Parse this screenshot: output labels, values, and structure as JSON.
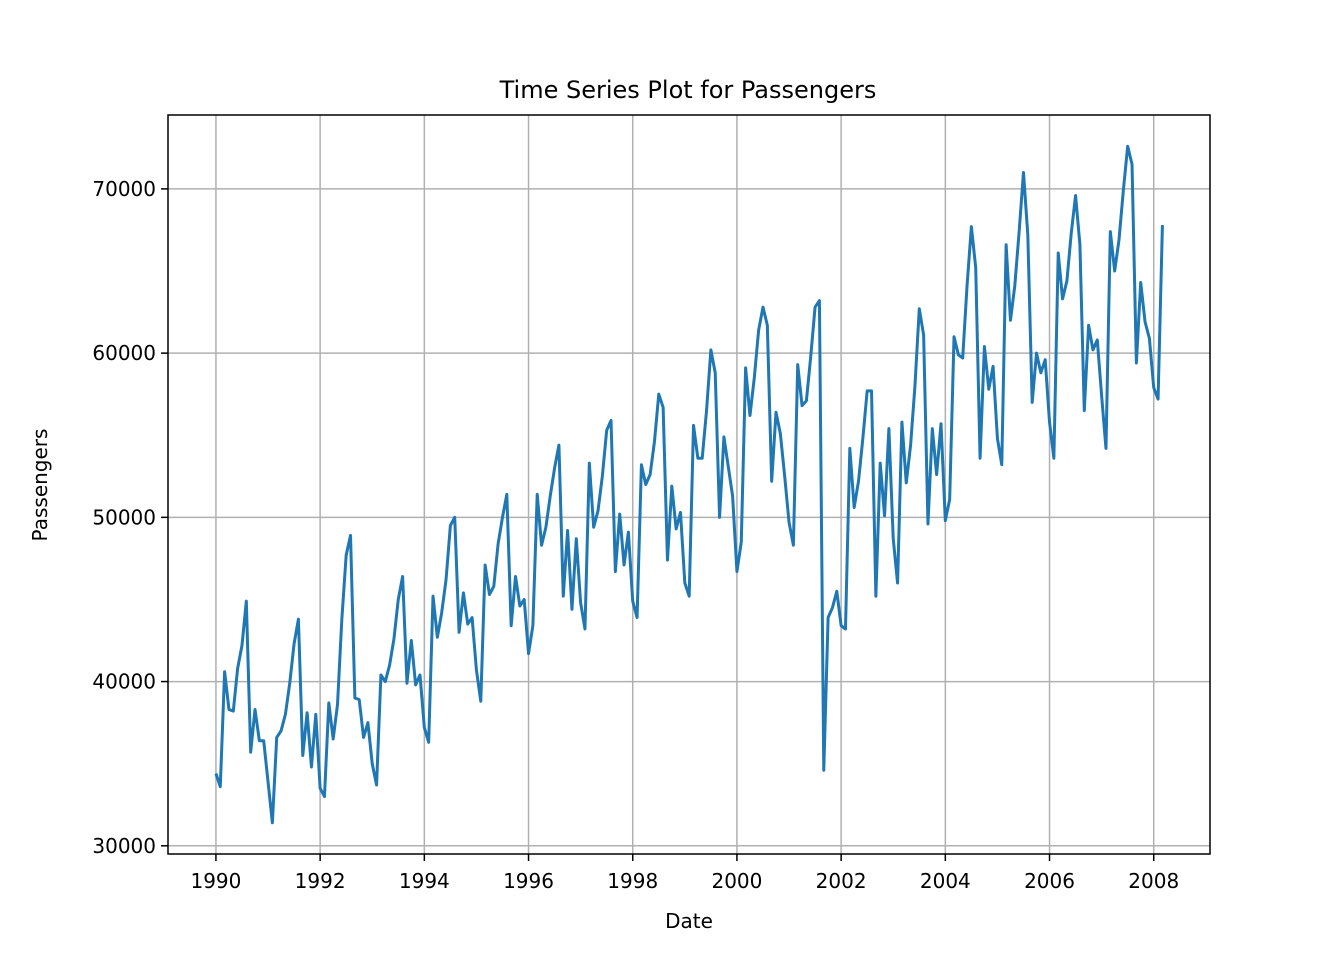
{
  "chart_data": {
    "type": "line",
    "title": "Time Series Plot for Passengers",
    "xlabel": "Date",
    "ylabel": "Passengers",
    "xlim": [
      1989.08,
      2009.08
    ],
    "ylim": [
      29500,
      74500
    ],
    "x_ticks": [
      1990,
      1992,
      1994,
      1996,
      1998,
      2000,
      2002,
      2004,
      2006,
      2008
    ],
    "x_tick_labels": [
      "1990",
      "1992",
      "1994",
      "1996",
      "1998",
      "2000",
      "2002",
      "2004",
      "2006",
      "2008"
    ],
    "y_ticks": [
      30000,
      40000,
      50000,
      60000,
      70000
    ],
    "y_tick_labels": [
      "30000",
      "40000",
      "50000",
      "60000",
      "70000"
    ],
    "grid": true,
    "line_color": "#1f77b4",
    "series": [
      {
        "x_start": "1990-01",
        "x_frequency": "monthly",
        "values": [
          34400,
          33600,
          40600,
          38300,
          38200,
          40800,
          42200,
          44900,
          35700,
          38300,
          36400,
          36400,
          33900,
          31400,
          36600,
          37000,
          38000,
          39900,
          42300,
          43800,
          35500,
          38100,
          34800,
          38000,
          33500,
          33000,
          38700,
          36500,
          38600,
          43800,
          47700,
          48900,
          39000,
          38900,
          36600,
          37500,
          35000,
          33700,
          40400,
          40000,
          41000,
          42600,
          45000,
          46400,
          39900,
          42500,
          39800,
          40400,
          37200,
          36300,
          45200,
          42700,
          44200,
          46200,
          49500,
          50000,
          43000,
          45400,
          43500,
          43900,
          40700,
          38800,
          47100,
          45300,
          45800,
          48400,
          50000,
          51400,
          43400,
          46400,
          44600,
          45000,
          41700,
          43400,
          51400,
          48300,
          49400,
          51300,
          53000,
          54400,
          45200,
          49200,
          44400,
          48700,
          44800,
          43200,
          53300,
          49400,
          50400,
          52500,
          55300,
          55900,
          46700,
          50200,
          47100,
          49100,
          44900,
          43900,
          53200,
          52000,
          52600,
          54600,
          57500,
          56700,
          47400,
          51900,
          49300,
          50300,
          46000,
          45200,
          55600,
          53600,
          53600,
          56500,
          60200,
          58800,
          50000,
          54900,
          53100,
          51300,
          46700,
          48500,
          59100,
          56200,
          58500,
          61400,
          62800,
          61700,
          52200,
          56400,
          55100,
          52500,
          49700,
          48300,
          59300,
          56800,
          57100,
          59800,
          62800,
          63200,
          34600,
          43900,
          44500,
          45500,
          43400,
          43200,
          54200,
          50600,
          52200,
          54800,
          57700,
          57700,
          45200,
          53300,
          50100,
          55400,
          48700,
          46000,
          55800,
          52100,
          54400,
          58000,
          62700,
          61100,
          49600,
          55400,
          52600,
          55700,
          49800,
          51100,
          61000,
          59900,
          59700,
          64100,
          67700,
          65200,
          53600,
          60400,
          57800,
          59200,
          54800,
          53200,
          66600,
          62000,
          64100,
          67400,
          71000,
          67200,
          57000,
          60000,
          58800,
          59600,
          55800,
          53600,
          66100,
          63300,
          64400,
          67300,
          69600,
          66600,
          56500,
          61700,
          60200,
          60800,
          57400,
          54200,
          67400,
          65000,
          66900,
          69900,
          72600,
          71500,
          59400,
          64300,
          61900,
          60900,
          57900,
          57200,
          67800
        ]
      }
    ]
  }
}
